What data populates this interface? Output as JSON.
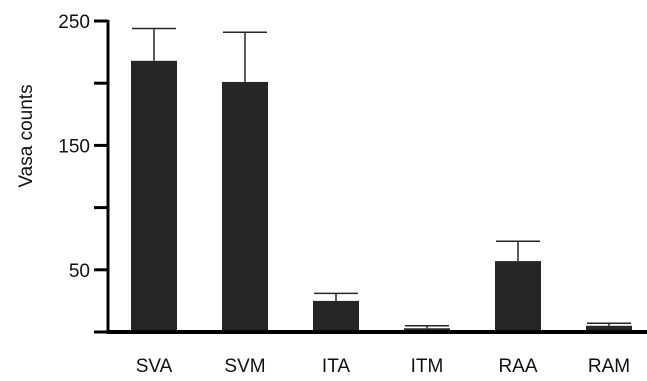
{
  "chart_data": {
    "type": "bar",
    "title": "",
    "xlabel": "",
    "ylabel": "Vasa  counts",
    "categories": [
      "SVA",
      "SVM",
      "ITA",
      "ITM",
      "RAA",
      "RAM"
    ],
    "values": [
      218,
      201,
      25,
      3,
      57,
      5
    ],
    "error_upper": [
      244,
      241,
      31,
      5,
      73,
      7
    ],
    "ylim": [
      0,
      250
    ],
    "yticks": [
      0,
      50,
      100,
      150,
      200,
      250
    ],
    "ytick_labels": [
      "50",
      "150",
      "250"
    ],
    "ytick_label_values": [
      50,
      150,
      250
    ],
    "grid": false,
    "bar_color": "#262626",
    "axis_color": "#000000"
  }
}
